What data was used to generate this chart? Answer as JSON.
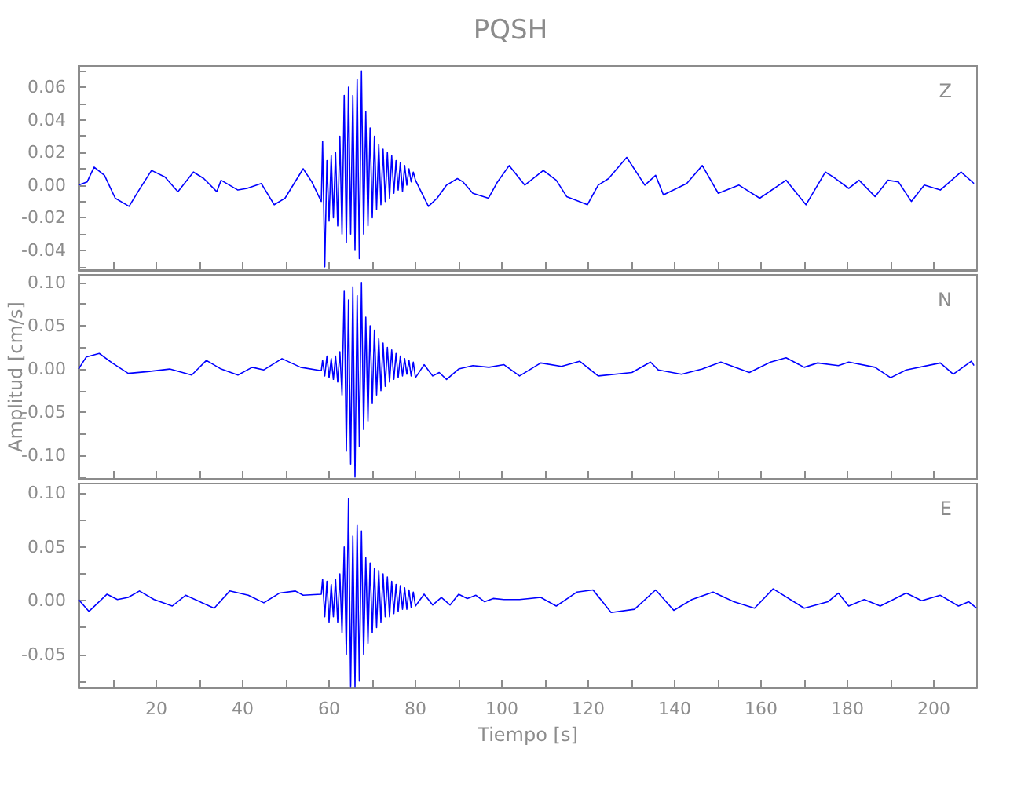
{
  "chart_data": [
    {
      "type": "line",
      "title": "PQSH",
      "annotations": [
        "Z"
      ],
      "color": "#0000ff",
      "tick_labels": "y",
      "xlim": [
        2,
        210
      ],
      "xticks": [
        {
          "value": 10,
          "label": null
        },
        20,
        {
          "value": 30,
          "label": null
        },
        40,
        {
          "value": 50,
          "label": null
        },
        60,
        {
          "value": 70,
          "label": null
        },
        80,
        {
          "value": 90,
          "label": null
        },
        100,
        {
          "value": 110,
          "label": null
        },
        120,
        {
          "value": 130,
          "label": null
        },
        140,
        {
          "value": 150,
          "label": null
        },
        160,
        {
          "value": 170,
          "label": null
        },
        180,
        {
          "value": 190,
          "label": null
        },
        200
      ],
      "ylim": [
        -0.052,
        0.073
      ],
      "yticks": [
        {
          "value": -0.05,
          "label": null
        },
        {
          "value": -0.04,
          "label": "-0.04"
        },
        {
          "value": -0.03,
          "label": null
        },
        {
          "value": -0.02,
          "label": "-0.02"
        },
        {
          "value": -0.01,
          "label": null
        },
        {
          "value": 0,
          "label": "0.00"
        },
        {
          "value": 0.01,
          "label": null
        },
        {
          "value": 0.02,
          "label": "0.02"
        },
        {
          "value": 0.03,
          "label": null
        },
        {
          "value": 0.04,
          "label": "0.04"
        },
        {
          "value": 0.05,
          "label": null
        },
        {
          "value": 0.06,
          "label": "0.06"
        },
        {
          "value": 0.07,
          "label": null
        }
      ],
      "x": [
        2,
        4,
        5.6,
        8,
        10.5,
        13.7,
        16,
        18.9,
        22,
        25,
        28.6,
        31,
        34,
        35,
        38.9,
        41,
        44.3,
        47.3,
        49.8,
        54,
        56,
        58.2,
        58.5,
        59,
        59.5,
        60,
        60.5,
        61,
        61.5,
        62,
        62.5,
        63,
        63.5,
        64,
        64.5,
        65,
        65.5,
        66,
        66.5,
        67,
        67.5,
        68,
        68.5,
        69,
        69.5,
        70,
        70.5,
        71,
        71.5,
        72,
        72.5,
        73,
        73.5,
        74,
        74.5,
        75,
        75.5,
        76,
        76.5,
        77,
        77.5,
        78,
        78.5,
        79,
        79.5,
        80,
        83,
        85,
        87.2,
        89.7,
        91,
        93.3,
        96.9,
        99,
        101.7,
        105.3,
        109.6,
        112.6,
        115,
        119.8,
        122.3,
        124.7,
        128.9,
        133.1,
        135.6,
        137.4,
        142.8,
        146.4,
        150.1,
        154.9,
        159.7,
        165.8,
        170.4,
        174.9,
        176.7,
        180.3,
        182.7,
        186.4,
        189.4,
        191.8,
        194.8,
        197.8,
        201.5,
        206.3,
        209.3
      ],
      "values": [
        0.0,
        0.002,
        0.011,
        0.006,
        -0.008,
        -0.013,
        -0.003,
        0.009,
        0.005,
        -0.004,
        0.008,
        0.004,
        -0.004,
        0.003,
        -0.003,
        -0.002,
        0.001,
        -0.012,
        -0.008,
        0.01,
        0.002,
        -0.01,
        0.027,
        -0.05,
        0.015,
        -0.022,
        0.018,
        -0.02,
        0.02,
        -0.025,
        0.03,
        -0.03,
        0.055,
        -0.035,
        0.06,
        -0.03,
        0.055,
        -0.04,
        0.065,
        -0.045,
        0.07,
        -0.03,
        0.045,
        -0.025,
        0.035,
        -0.02,
        0.03,
        -0.015,
        0.025,
        -0.012,
        0.022,
        -0.01,
        0.02,
        -0.008,
        0.018,
        -0.005,
        0.015,
        -0.003,
        0.014,
        -0.004,
        0.012,
        0.0,
        0.01,
        0.002,
        0.008,
        0.003,
        -0.013,
        -0.008,
        0.0,
        0.004,
        0.002,
        -0.005,
        -0.008,
        0.002,
        0.012,
        0.0,
        0.009,
        0.003,
        -0.007,
        -0.012,
        0.0,
        0.004,
        0.017,
        0.0,
        0.006,
        -0.006,
        0.001,
        0.012,
        -0.005,
        0.0,
        -0.008,
        0.003,
        -0.012,
        0.008,
        0.005,
        -0.002,
        0.003,
        -0.007,
        0.003,
        0.002,
        -0.01,
        0.0,
        -0.003,
        0.008,
        0.001
      ]
    },
    {
      "type": "line",
      "ylabel": "Amplitud [cm/s]",
      "annotations": [
        "N"
      ],
      "color": "#0000ff",
      "tick_labels": "y",
      "xlim": [
        2,
        210
      ],
      "xticks": [
        {
          "value": 10,
          "label": null
        },
        20,
        {
          "value": 30,
          "label": null
        },
        40,
        {
          "value": 50,
          "label": null
        },
        60,
        {
          "value": 70,
          "label": null
        },
        80,
        {
          "value": 90,
          "label": null
        },
        100,
        {
          "value": 110,
          "label": null
        },
        120,
        {
          "value": 130,
          "label": null
        },
        140,
        {
          "value": 150,
          "label": null
        },
        160,
        {
          "value": 170,
          "label": null
        },
        180,
        {
          "value": 190,
          "label": null
        },
        200
      ],
      "ylim": [
        -0.127,
        0.109
      ],
      "yticks": [
        {
          "value": -0.125,
          "label": null
        },
        {
          "value": -0.1,
          "label": "-0.10"
        },
        {
          "value": -0.075,
          "label": null
        },
        {
          "value": -0.05,
          "label": "-0.05"
        },
        {
          "value": -0.025,
          "label": null
        },
        {
          "value": 0,
          "label": "0.00"
        },
        {
          "value": 0.025,
          "label": null
        },
        {
          "value": 0.05,
          "label": "0.05"
        },
        {
          "value": 0.075,
          "label": null
        },
        {
          "value": 0.1,
          "label": "0.10"
        }
      ],
      "x": [
        2,
        3.8,
        6.8,
        9.8,
        13.5,
        18,
        23.1,
        28.2,
        31.6,
        35,
        38.9,
        42.2,
        44.9,
        49.1,
        53.4,
        58.2,
        58.5,
        59,
        59.5,
        60,
        60.5,
        61,
        61.5,
        62,
        62.5,
        63,
        63.5,
        64,
        64.5,
        65,
        65.5,
        66,
        66.5,
        67,
        67.5,
        68,
        68.5,
        69,
        69.5,
        70,
        70.5,
        71,
        71.5,
        72,
        72.5,
        73,
        73.5,
        74,
        74.5,
        75,
        75.5,
        76,
        76.5,
        77,
        77.5,
        78,
        78.5,
        79,
        79.5,
        80,
        82,
        84,
        85.5,
        87.2,
        90,
        93.3,
        97,
        100.5,
        104.1,
        109,
        113.8,
        118,
        122.3,
        130.1,
        134.4,
        136.2,
        141.6,
        146.4,
        150.7,
        157.3,
        162.2,
        165.8,
        170,
        173.1,
        177.9,
        180.3,
        186.4,
        190,
        193.6,
        201.5,
        204.5,
        208.7,
        209.3
      ],
      "values": [
        0.0,
        0.014,
        0.018,
        0.007,
        -0.005,
        -0.003,
        0.0,
        -0.007,
        0.01,
        0.0,
        -0.007,
        0.002,
        -0.001,
        0.012,
        0.002,
        -0.002,
        0.01,
        -0.008,
        0.015,
        -0.01,
        0.012,
        -0.012,
        0.015,
        -0.015,
        0.02,
        -0.03,
        0.09,
        -0.095,
        0.08,
        -0.11,
        0.095,
        -0.125,
        0.085,
        -0.09,
        0.1,
        -0.07,
        0.06,
        -0.06,
        0.05,
        -0.04,
        0.045,
        -0.03,
        0.035,
        -0.025,
        0.03,
        -0.02,
        0.025,
        -0.015,
        0.022,
        -0.012,
        0.018,
        -0.01,
        0.015,
        -0.008,
        0.012,
        -0.006,
        0.01,
        -0.008,
        0.008,
        -0.01,
        0.005,
        -0.008,
        -0.004,
        -0.012,
        0.0,
        0.004,
        0.002,
        0.005,
        -0.008,
        0.007,
        0.003,
        0.009,
        -0.008,
        -0.004,
        0.008,
        -0.001,
        -0.006,
        0.0,
        0.008,
        -0.004,
        0.008,
        0.013,
        0.002,
        0.007,
        0.004,
        0.008,
        0.002,
        -0.01,
        -0.001,
        0.007,
        -0.006,
        0.009,
        0.004
      ]
    },
    {
      "type": "line",
      "xlabel": "Tiempo [s]",
      "annotations": [
        "E"
      ],
      "color": "#0000ff",
      "xlim": [
        2,
        210
      ],
      "xticks": [
        {
          "value": 10,
          "label": null
        },
        20,
        {
          "value": 30,
          "label": null
        },
        40,
        {
          "value": 50,
          "label": null
        },
        60,
        {
          "value": 70,
          "label": null
        },
        80,
        {
          "value": 90,
          "label": null
        },
        100,
        {
          "value": 110,
          "label": null
        },
        120,
        {
          "value": 130,
          "label": null
        },
        140,
        {
          "value": 150,
          "label": null
        },
        160,
        {
          "value": 170,
          "label": null
        },
        180,
        {
          "value": 190,
          "label": null
        },
        200
      ],
      "ylim": [
        -0.081,
        0.109
      ],
      "yticks": [
        {
          "value": -0.075,
          "label": null
        },
        {
          "value": -0.05,
          "label": "-0.05"
        },
        {
          "value": -0.025,
          "label": null
        },
        {
          "value": 0,
          "label": "0.00"
        },
        {
          "value": 0.025,
          "label": null
        },
        {
          "value": 0.05,
          "label": "0.05"
        },
        {
          "value": 0.075,
          "label": null
        },
        {
          "value": 0.1,
          "label": "0.10"
        }
      ],
      "x": [
        2,
        4.4,
        8.6,
        11,
        13.5,
        16.1,
        19.5,
        23.7,
        26.8,
        33.4,
        37,
        41.3,
        44.9,
        48.5,
        52.2,
        54,
        58.2,
        58.5,
        59,
        59.5,
        60,
        60.5,
        61,
        61.5,
        62,
        62.5,
        63,
        63.5,
        64,
        64.5,
        65,
        65.5,
        66,
        66.5,
        67,
        67.5,
        68,
        68.5,
        69,
        69.5,
        70,
        70.5,
        71,
        71.5,
        72,
        72.5,
        73,
        73.5,
        74,
        74.5,
        75,
        75.5,
        76,
        76.5,
        77,
        77.5,
        78,
        78.5,
        79,
        79.5,
        80,
        82,
        84,
        86,
        88,
        90,
        92,
        94,
        96,
        98,
        100.5,
        104.1,
        109,
        112.6,
        117.4,
        121.1,
        125.3,
        130.7,
        135.6,
        139.8,
        144,
        148.9,
        153.7,
        158.5,
        162.8,
        170,
        175.5,
        177.9,
        180.3,
        183.9,
        187.6,
        193.6,
        197.2,
        201.5,
        205.7,
        208.1,
        209.9
      ],
      "values": [
        0.001,
        -0.01,
        0.006,
        0.001,
        0.003,
        0.009,
        0.001,
        -0.005,
        0.005,
        -0.007,
        0.009,
        0.005,
        -0.002,
        0.007,
        0.009,
        0.005,
        0.006,
        0.02,
        -0.015,
        0.018,
        -0.02,
        0.015,
        -0.015,
        0.02,
        -0.02,
        0.025,
        -0.03,
        0.05,
        -0.05,
        0.095,
        -0.08,
        0.06,
        -0.08,
        0.07,
        -0.075,
        0.065,
        -0.05,
        0.04,
        -0.04,
        0.035,
        -0.03,
        0.03,
        -0.025,
        0.028,
        -0.02,
        0.025,
        -0.015,
        0.022,
        -0.015,
        0.018,
        -0.012,
        0.015,
        -0.01,
        0.014,
        -0.008,
        0.012,
        -0.008,
        0.01,
        -0.006,
        0.008,
        -0.005,
        0.006,
        -0.004,
        0.003,
        -0.004,
        0.006,
        0.002,
        0.005,
        -0.001,
        0.002,
        0.001,
        0.001,
        0.003,
        -0.005,
        0.008,
        0.01,
        -0.011,
        -0.008,
        0.01,
        -0.009,
        0.001,
        0.008,
        -0.001,
        -0.007,
        0.011,
        -0.007,
        -0.001,
        0.007,
        -0.005,
        0.001,
        -0.005,
        0.007,
        0.0,
        0.005,
        -0.005,
        -0.001,
        -0.007
      ]
    }
  ]
}
